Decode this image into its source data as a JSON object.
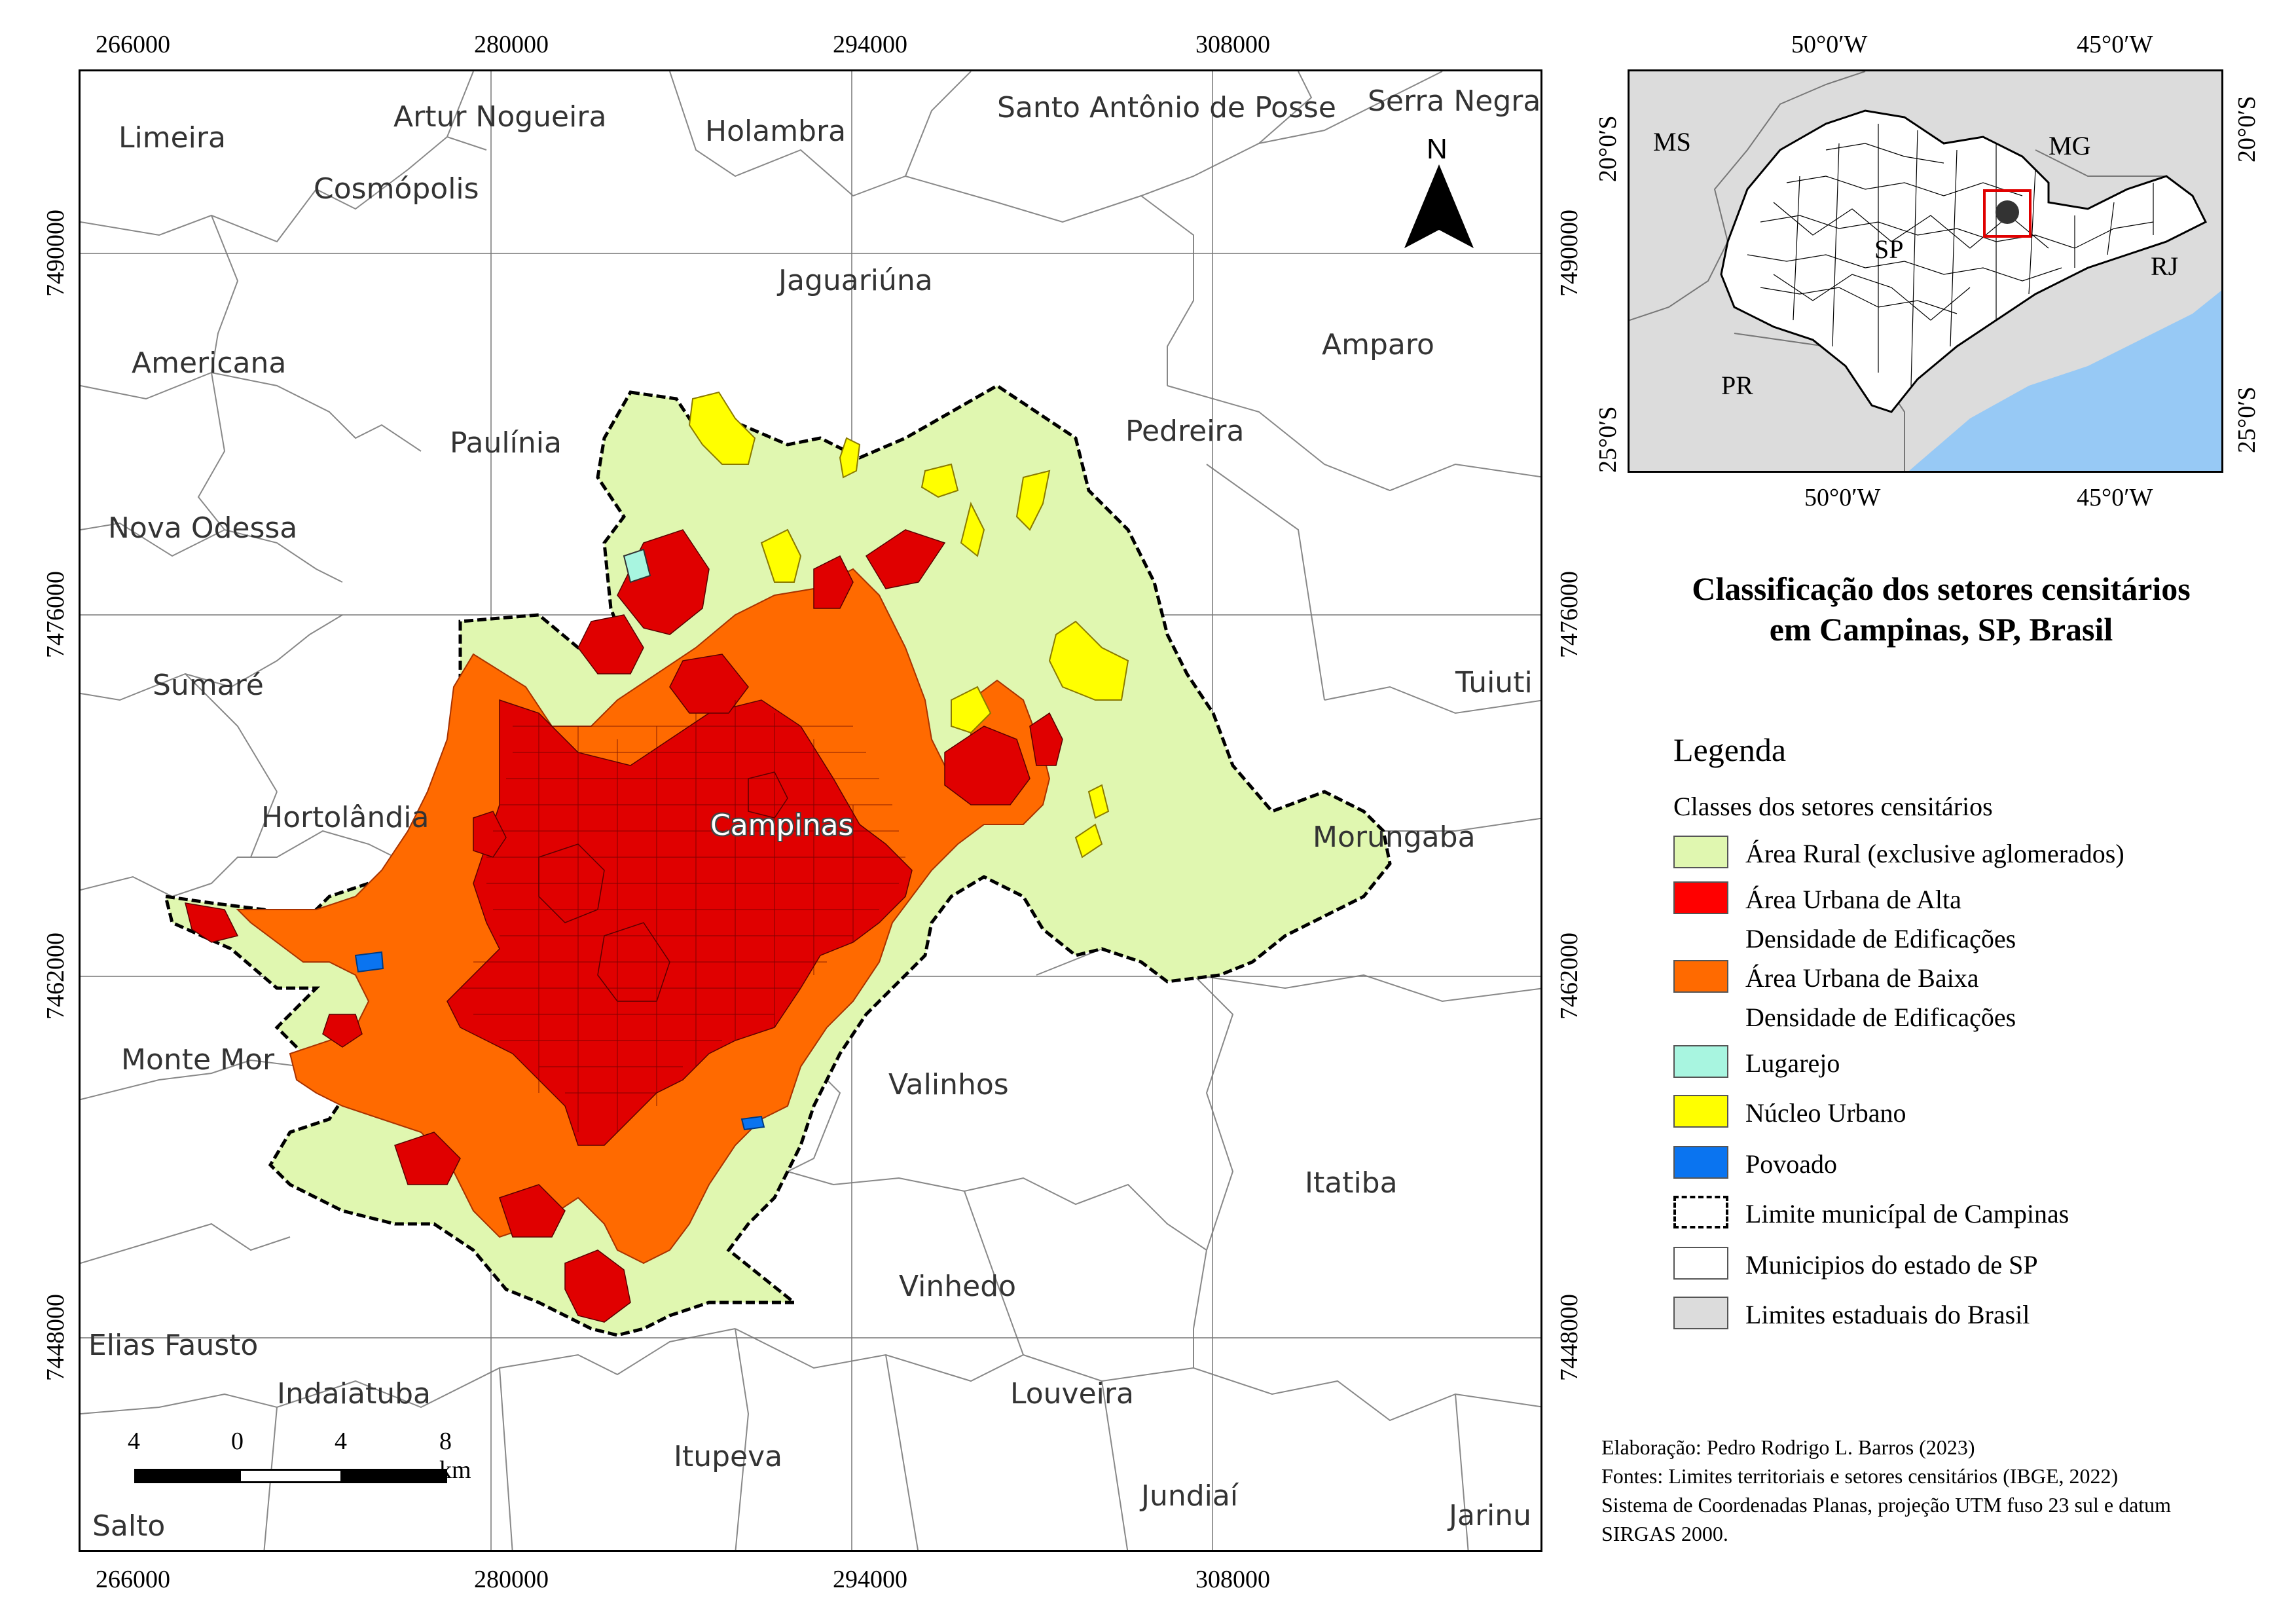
{
  "map": {
    "top_ticks": [
      "266000",
      "280000",
      "294000",
      "308000"
    ],
    "bottom_ticks": [
      "266000",
      "280000",
      "294000",
      "308000"
    ],
    "left_ticks": [
      "7490000",
      "7476000",
      "7462000",
      "7448000"
    ],
    "right_ticks": [
      "7490000",
      "7476000",
      "7462000",
      "7448000"
    ],
    "north_label": "N",
    "city_label": "Campinas",
    "municipalities": [
      "Limeira",
      "Artur Nogueira",
      "Holambra",
      "Santo Antônio de Posse",
      "Serra Negra",
      "Cosmópolis",
      "Jaguariúna",
      "Americana",
      "Amparo",
      "Paulínia",
      "Pedreira",
      "Nova Odessa",
      "Sumaré",
      "Tuiuti",
      "Hortolândia",
      "Morungaba",
      "Monte Mor",
      "Valinhos",
      "Itatiba",
      "Vinhedo",
      "Elias Fausto",
      "Indaiatuba",
      "Louveira",
      "Itupeva",
      "Jundiaí",
      "Salto",
      "Jarinu"
    ],
    "scale_labels": [
      "4",
      "0",
      "4",
      "8 km"
    ],
    "colors": {
      "rural": "#e0f7b0",
      "urban_high": "#ff0000",
      "urban_low": "#ff6a00",
      "lugarejo": "#a8f5e0",
      "nucleo": "#ffff00",
      "povoado": "#0a74f0",
      "state_gray": "#dcdcdc",
      "ocean": "#97c9f5"
    }
  },
  "inset": {
    "top_ticks": [
      "50°0′W",
      "45°0′W"
    ],
    "bottom_ticks": [
      "50°0′W",
      "45°0′W"
    ],
    "left_ticks": [
      "20°0′S",
      "25°0′S"
    ],
    "right_ticks": [
      "20°0′S",
      "25°0′S"
    ],
    "states": [
      "MS",
      "MG",
      "SP",
      "RJ",
      "PR"
    ]
  },
  "title": {
    "line1": "Classificação dos setores censitários",
    "line2": "em Campinas, SP, Brasil"
  },
  "legend": {
    "title": "Legenda",
    "subtitle": "Classes dos setores censitários",
    "items": [
      {
        "label": "Área Rural (exclusive aglomerados)",
        "color": "#e0f7b0"
      },
      {
        "label": "Área Urbana de Alta",
        "label2": "Densidade de Edificações",
        "color": "#ff0000"
      },
      {
        "label": "Área Urbana de Baixa",
        "label2": "Densidade de Edificações",
        "color": "#ff6a00"
      },
      {
        "label": "Lugarejo",
        "color": "#a8f5e0"
      },
      {
        "label": "Núcleo Urbano",
        "color": "#ffff00"
      },
      {
        "label": "Povoado",
        "color": "#0a74f0"
      },
      {
        "label": "Limite municípal de Campinas",
        "color": "#ffffff"
      },
      {
        "label": "Municipios do estado de SP",
        "color": "#ffffff"
      },
      {
        "label": "Limites estaduais do Brasil",
        "color": "#dcdcdc"
      }
    ]
  },
  "credits": {
    "line1": "Elaboração: Pedro Rodrigo L. Barros (2023)",
    "line2": "Fontes: Limites territoriais e setores censitários (IBGE, 2022)",
    "line3": "Sistema de Coordenadas Planas, projeção UTM fuso 23 sul e datum",
    "line4": "SIRGAS 2000."
  }
}
